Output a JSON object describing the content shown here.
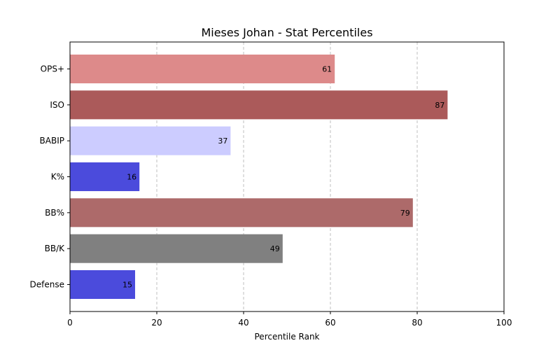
{
  "chart_data": {
    "type": "bar",
    "orientation": "horizontal",
    "title": "Mieses Johan - Stat Percentiles",
    "xlabel": "Percentile Rank",
    "ylabel": "",
    "xlim": [
      0,
      100
    ],
    "xticks": [
      0,
      20,
      40,
      60,
      80,
      100
    ],
    "grid": "x-axis dashed",
    "categories": [
      "OPS+",
      "ISO",
      "BABIP",
      "K%",
      "BB%",
      "BB/K",
      "Defense"
    ],
    "values": [
      61,
      87,
      37,
      16,
      79,
      49,
      15
    ],
    "bar_colors": [
      "#dd8a8a",
      "#ab5a5a",
      "#ccccff",
      "#4b4bdc",
      "#ad6a6a",
      "#808080",
      "#4b4bdc"
    ]
  }
}
